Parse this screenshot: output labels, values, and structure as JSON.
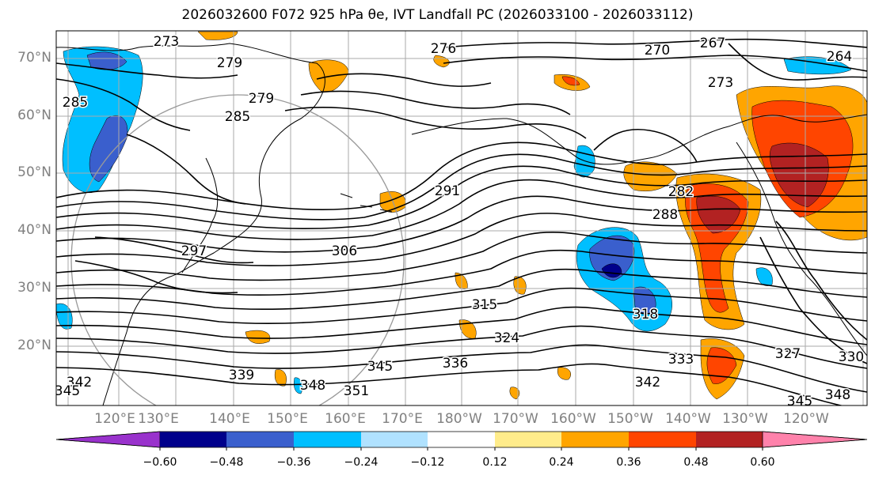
{
  "title": "2026032600 F072 925 hPa θe, IVT Landfall PC (2026033100 - 2026033112)",
  "lat_labels": [
    "70°N",
    "60°N",
    "50°N",
    "40°N",
    "30°N",
    "20°N"
  ],
  "lon_labels": [
    "120°E",
    "130°E",
    "140°E",
    "150°E",
    "160°E",
    "170°E",
    "180°W",
    "170°W",
    "160°W",
    "150°W",
    "140°W",
    "130°W",
    "120°W"
  ],
  "contour_labels": [
    "273",
    "276",
    "270",
    "267",
    "264",
    "273",
    "279",
    "279",
    "285",
    "285",
    "291",
    "288",
    "282",
    "297",
    "306",
    "315",
    "318",
    "324",
    "327",
    "330",
    "333",
    "336",
    "339",
    "342",
    "342",
    "345",
    "345",
    "345",
    "348",
    "348",
    "351"
  ],
  "colorbar": {
    "ticks": [
      "−0.60",
      "−0.48",
      "−0.36",
      "−0.24",
      "−0.12",
      "0.12",
      "0.24",
      "0.36",
      "0.48",
      "0.60"
    ],
    "colors": [
      "#9932cc",
      "#00008b",
      "#3a5fcd",
      "#00bfff",
      "#b0e2ff",
      "#ffffff",
      "#ffec8b",
      "#ffa500",
      "#ff4500",
      "#b22222",
      "#ff82ab"
    ]
  },
  "shading_colors": {
    "light_blue": "#b0e2ff",
    "sky_blue": "#00bfff",
    "royal_blue": "#3a5fcd",
    "navy": "#00008b",
    "yellow": "#ffec8b",
    "orange": "#ffa500",
    "red_orange": "#ff4500",
    "firebrick": "#b22222"
  }
}
